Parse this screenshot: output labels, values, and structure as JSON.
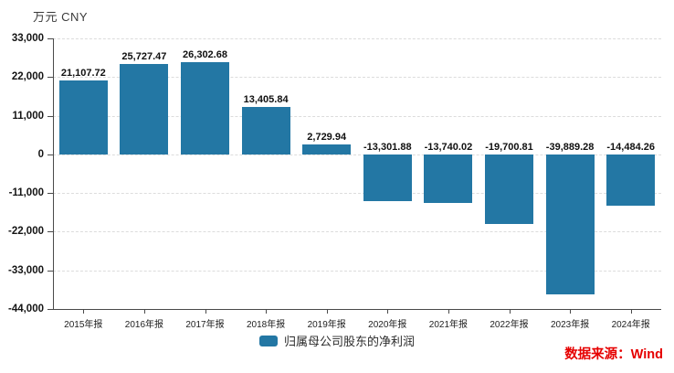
{
  "chart": {
    "unit_label": "万元  CNY",
    "legend": "归属母公司股东的净利润",
    "source_label": "数据来源：Wind",
    "bar_color": "#2377a4",
    "source_color": "#e60000",
    "grid_color": "#dcdcdc",
    "axis_color": "#4a4a4a"
  },
  "chart_data": {
    "type": "bar",
    "title": "",
    "xlabel": "",
    "ylabel": "万元 CNY",
    "categories": [
      "2015年报",
      "2016年报",
      "2017年报",
      "2018年报",
      "2019年报",
      "2020年报",
      "2021年报",
      "2022年报",
      "2023年报",
      "2024年报"
    ],
    "series": [
      {
        "name": "归属母公司股东的净利润",
        "values": [
          21107.72,
          25727.47,
          26302.68,
          13405.84,
          2729.94,
          -13301.88,
          -13740.02,
          -19700.81,
          -39889.28,
          -14484.26
        ]
      }
    ],
    "value_labels": [
      "21,107.72",
      "25,727.47",
      "26,302.68",
      "13,405.84",
      "2,729.94",
      "-13,301.88",
      "-13,740.02",
      "-19,700.81",
      "-39,889.28",
      "-14,484.26"
    ],
    "ylim": [
      -44000,
      33000
    ],
    "yticks": [
      33000,
      22000,
      11000,
      0,
      -11000,
      -22000,
      -33000,
      -44000
    ],
    "ytick_labels": [
      "33,000",
      "22,000",
      "11,000",
      "0",
      "-11,000",
      "-22,000",
      "-33,000",
      "-44,000"
    ],
    "grid": "horizontal-dashed",
    "legend_position": "bottom-center"
  }
}
